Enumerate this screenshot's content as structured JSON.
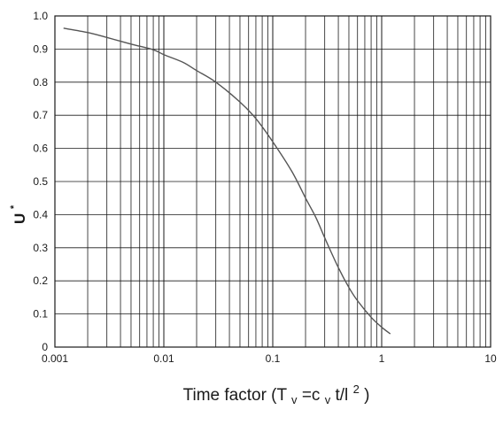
{
  "chart_data": {
    "type": "line",
    "title": "",
    "x_scale": "log",
    "xlim": [
      0.001,
      10
    ],
    "ylim": [
      0,
      1.0
    ],
    "grid": true,
    "xlabel_parts": {
      "main": "Time factor (T",
      "sub1": "v",
      "mid1": "=c",
      "sub2": "v",
      "mid2": "t/l",
      "sup": "2",
      "end": ")"
    },
    "ylabel_parts": {
      "main": "U",
      "sup": "*"
    },
    "x_ticks": [
      {
        "value": 0.001,
        "label": "0.001"
      },
      {
        "value": 0.01,
        "label": "0.01"
      },
      {
        "value": 0.1,
        "label": "0.1"
      },
      {
        "value": 1,
        "label": "1"
      },
      {
        "value": 10,
        "label": "10"
      }
    ],
    "y_ticks": [
      {
        "value": 0,
        "label": "0"
      },
      {
        "value": 0.1,
        "label": "0.1"
      },
      {
        "value": 0.2,
        "label": "0.2"
      },
      {
        "value": 0.3,
        "label": "0.3"
      },
      {
        "value": 0.4,
        "label": "0.4"
      },
      {
        "value": 0.5,
        "label": "0.5"
      },
      {
        "value": 0.6,
        "label": "0.6"
      },
      {
        "value": 0.7,
        "label": "0.7"
      },
      {
        "value": 0.8,
        "label": "0.8"
      },
      {
        "value": 0.9,
        "label": "0.9"
      },
      {
        "value": 1.0,
        "label": "1.0"
      }
    ],
    "series": [
      {
        "color": "#555555",
        "x": [
          0.0012,
          0.002,
          0.003,
          0.005,
          0.008,
          0.01,
          0.015,
          0.02,
          0.03,
          0.05,
          0.07,
          0.1,
          0.15,
          0.2,
          0.25,
          0.3,
          0.4,
          0.5,
          0.6,
          0.8,
          1.0,
          1.2
        ],
        "y": [
          0.963,
          0.95,
          0.935,
          0.915,
          0.898,
          0.883,
          0.86,
          0.835,
          0.8,
          0.74,
          0.69,
          0.62,
          0.53,
          0.45,
          0.39,
          0.33,
          0.24,
          0.18,
          0.14,
          0.09,
          0.06,
          0.04
        ]
      }
    ]
  }
}
